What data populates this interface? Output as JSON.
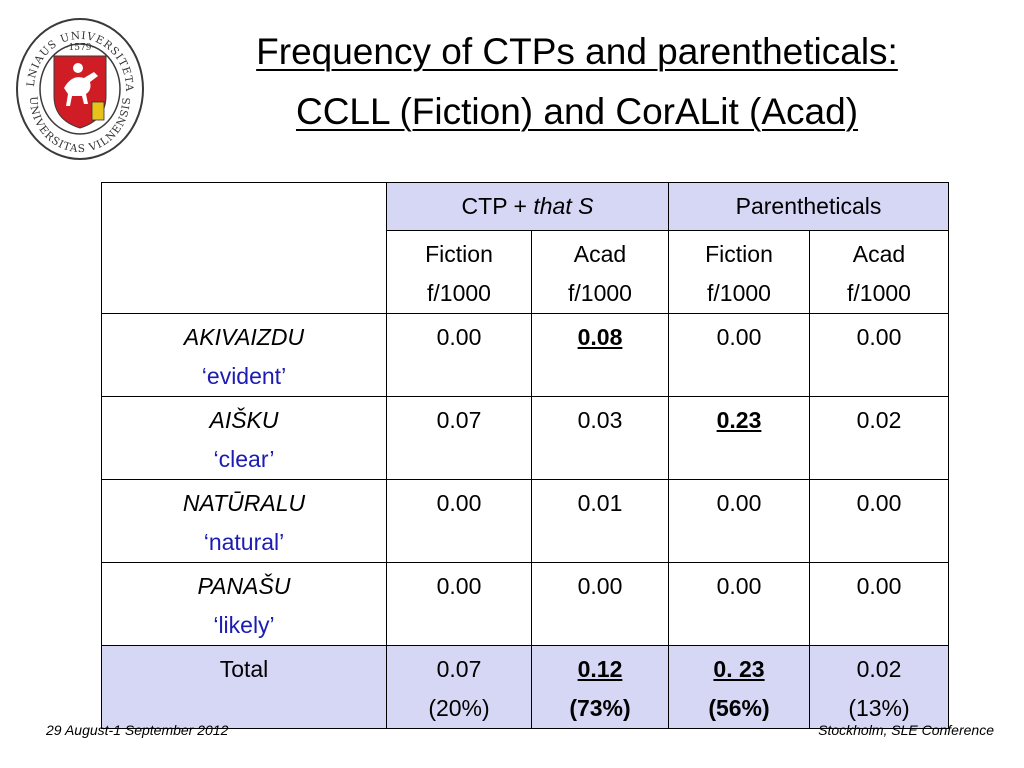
{
  "logo": {
    "outer_text": "VILNIAUS UNIVERSITETAS",
    "year": "·1579·",
    "inner_text": "UNIVERSITAS VILNENSIS",
    "colors": {
      "shield": "#d01c24",
      "ring": "#3a3a3a",
      "knight": "#ffffff",
      "book": "#e8c21a"
    }
  },
  "title": {
    "line1": "Frequency of CTPs and parentheticals:",
    "line2": "CCLL (Fiction) and CorALit (Acad)"
  },
  "table": {
    "group_ctp_prefix": "CTP + ",
    "group_ctp_italic": "that S",
    "group_paren": "Parentheticals",
    "sub_headers": [
      {
        "name": "Fiction",
        "unit": "f/1000"
      },
      {
        "name": "Acad",
        "unit": "f/1000"
      },
      {
        "name": "Fiction",
        "unit": "f/1000"
      },
      {
        "name": "Acad",
        "unit": "f/1000"
      }
    ],
    "rows": [
      {
        "word": "AKIVAIZDU",
        "gloss": "‘evident’",
        "values": [
          "0.00",
          "0.08",
          "0.00",
          "0.00"
        ]
      },
      {
        "word": "AIŠKU",
        "gloss": "‘clear’",
        "values": [
          "0.07",
          "0.03",
          "0.23",
          "0.02"
        ]
      },
      {
        "word": "NATŪRALU",
        "gloss": "‘natural’",
        "values": [
          "0.00",
          "0.01",
          "0.00",
          "0.00"
        ]
      },
      {
        "word": "PANAŠU",
        "gloss": "‘likely’",
        "values": [
          "0.00",
          "0.00",
          "0.00",
          "0.00"
        ]
      }
    ],
    "total": {
      "label": "Total",
      "values": [
        "0.07",
        "0.12",
        "0. 23",
        "0.02"
      ],
      "percents": [
        "(20%)",
        "(73%)",
        "(56%)",
        "(13%)"
      ]
    },
    "colors": {
      "header_bg": "#d6d6f5",
      "gloss": "#1c1cb4"
    }
  },
  "footer": {
    "date": "29  August-1 September 2012",
    "venue": "Stockholm, SLE Conference"
  }
}
